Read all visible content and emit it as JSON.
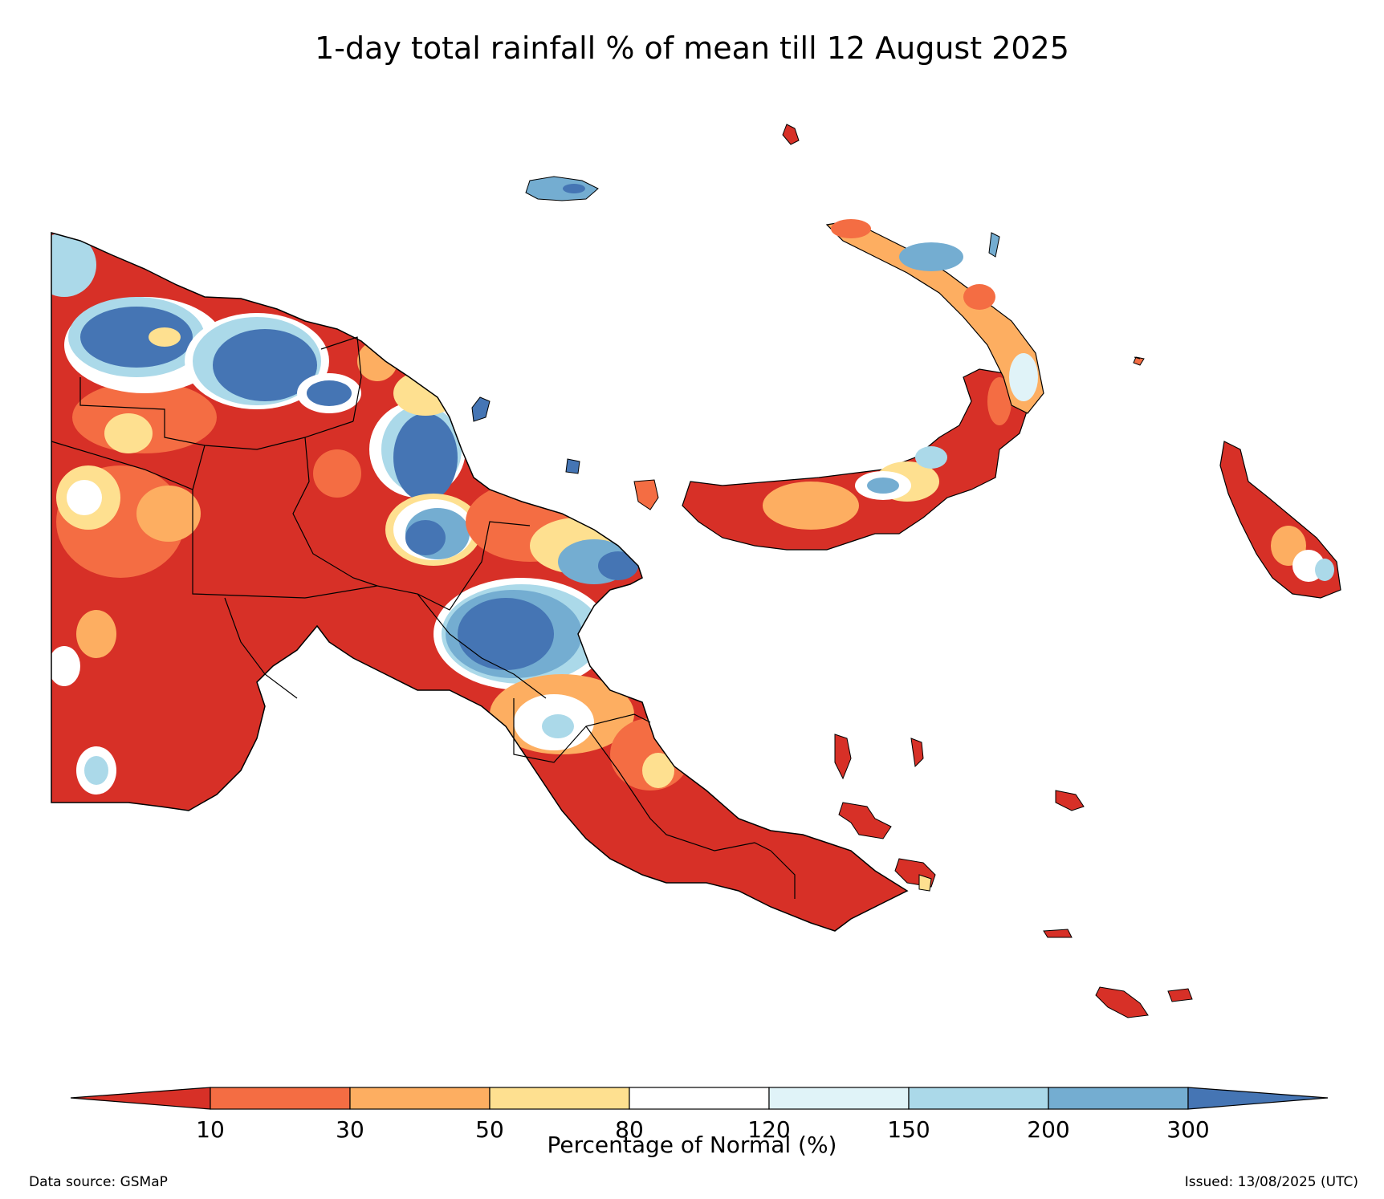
{
  "title": "1-day total rainfall % of mean till 12 August 2025",
  "colorbar": {
    "label": "Percentage of Normal (%)",
    "ticks": [
      "10",
      "30",
      "50",
      "80",
      "120",
      "150",
      "200",
      "300"
    ],
    "colors": {
      "under_10": "#d73027",
      "10_30": "#f46d43",
      "30_50": "#fdae61",
      "50_80": "#fee090",
      "80_120": "#ffffff",
      "120_150": "#e0f3f8",
      "150_200": "#abd9e9",
      "200_300": "#74add1",
      "over_300": "#4575b4"
    }
  },
  "footer": {
    "source": "Data source: GSMaP",
    "issued": "Issued: 13/08/2025 (UTC)"
  }
}
